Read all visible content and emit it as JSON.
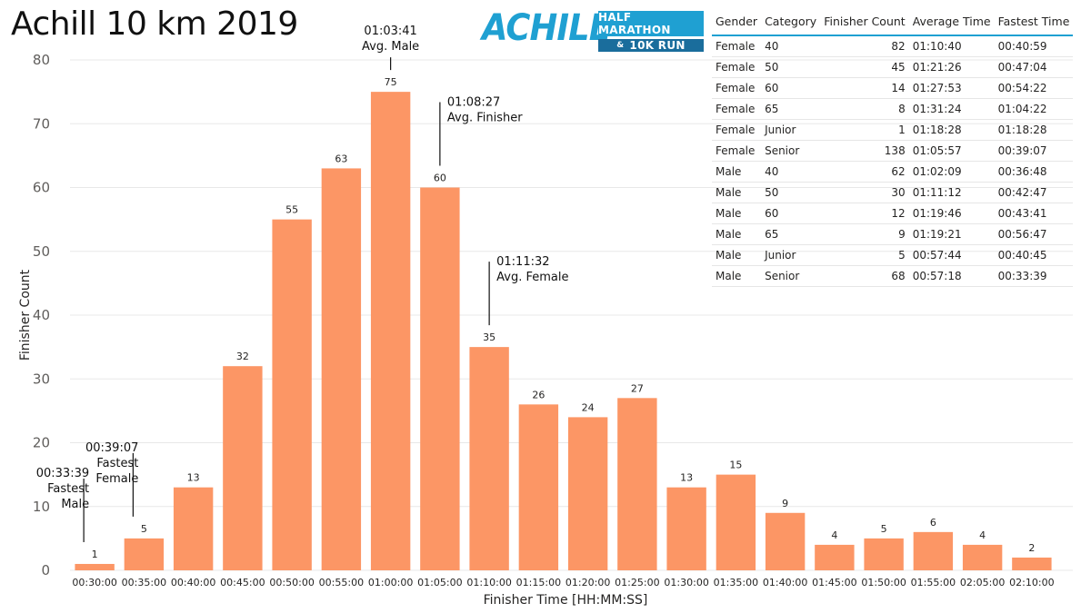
{
  "title": "Achill 10 km 2019",
  "logo": {
    "word": "ACHILL",
    "line1": "HALF MARATHON",
    "amp": "&",
    "line2": "10K RUN"
  },
  "colors": {
    "bar": "#fc9665",
    "accent": "#1fa0d2",
    "logo_dark": "#1a6d9c"
  },
  "chart_data": {
    "type": "bar",
    "xlabel": "Finisher Time [HH:MM:SS]",
    "ylabel": "Finisher Count",
    "ylim": [
      0,
      80
    ],
    "yticks": [
      0,
      10,
      20,
      30,
      40,
      50,
      60,
      70,
      80
    ],
    "grid": true,
    "categories": [
      "00:30:00",
      "00:35:00",
      "00:40:00",
      "00:45:00",
      "00:50:00",
      "00:55:00",
      "01:00:00",
      "01:05:00",
      "01:10:00",
      "01:15:00",
      "01:20:00",
      "01:25:00",
      "01:30:00",
      "01:35:00",
      "01:40:00",
      "01:45:00",
      "01:50:00",
      "01:55:00",
      "02:05:00",
      "02:10:00"
    ],
    "values": [
      1,
      5,
      13,
      32,
      55,
      63,
      75,
      60,
      35,
      26,
      24,
      27,
      13,
      15,
      9,
      4,
      5,
      6,
      4,
      2
    ],
    "annotations": [
      {
        "category": "00:30:00",
        "lines": [
          "00:33:39",
          "Fastest",
          "Male"
        ],
        "align": "right"
      },
      {
        "category": "00:35:00",
        "lines": [
          "00:39:07",
          "Fastest",
          "Female"
        ],
        "align": "right"
      },
      {
        "category": "01:00:00",
        "lines": [
          "01:03:41",
          "Avg. Male"
        ],
        "align": "center"
      },
      {
        "category": "01:05:00",
        "lines": [
          "01:08:27",
          "Avg. Finisher"
        ],
        "align": "left"
      },
      {
        "category": "01:10:00",
        "lines": [
          "01:11:32",
          "Avg. Female"
        ],
        "align": "left"
      }
    ]
  },
  "table": {
    "headers": [
      "Gender",
      "Category",
      "Finisher Count",
      "Average Time",
      "Fastest Time"
    ],
    "rows": [
      [
        "Female",
        "40",
        "82",
        "01:10:40",
        "00:40:59"
      ],
      [
        "Female",
        "50",
        "45",
        "01:21:26",
        "00:47:04"
      ],
      [
        "Female",
        "60",
        "14",
        "01:27:53",
        "00:54:22"
      ],
      [
        "Female",
        "65",
        "8",
        "01:31:24",
        "01:04:22"
      ],
      [
        "Female",
        "Junior",
        "1",
        "01:18:28",
        "01:18:28"
      ],
      [
        "Female",
        "Senior",
        "138",
        "01:05:57",
        "00:39:07"
      ],
      [
        "Male",
        "40",
        "62",
        "01:02:09",
        "00:36:48"
      ],
      [
        "Male",
        "50",
        "30",
        "01:11:12",
        "00:42:47"
      ],
      [
        "Male",
        "60",
        "12",
        "01:19:46",
        "00:43:41"
      ],
      [
        "Male",
        "65",
        "9",
        "01:19:21",
        "00:56:47"
      ],
      [
        "Male",
        "Junior",
        "5",
        "00:57:44",
        "00:40:45"
      ],
      [
        "Male",
        "Senior",
        "68",
        "00:57:18",
        "00:33:39"
      ]
    ]
  }
}
